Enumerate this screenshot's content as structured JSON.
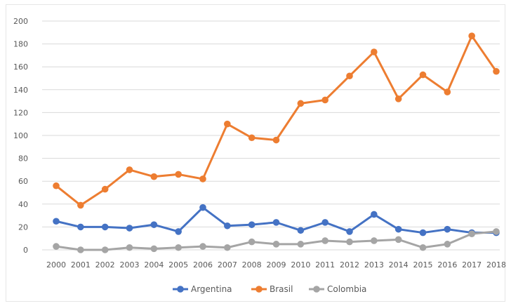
{
  "chart_data": {
    "type": "line",
    "title": "",
    "xlabel": "",
    "ylabel": "",
    "ylim": [
      0,
      200
    ],
    "yticks": [
      0,
      20,
      40,
      60,
      80,
      100,
      120,
      140,
      160,
      180,
      200
    ],
    "grid": true,
    "legend_position": "bottom",
    "x": [
      "2000",
      "2001",
      "2002",
      "2003",
      "2004",
      "2005",
      "2006",
      "2007",
      "2008",
      "2009",
      "2010",
      "2011",
      "2012",
      "2013",
      "2014",
      "2015",
      "2016",
      "2017",
      "2018"
    ],
    "series": [
      {
        "name": "Argentina",
        "color": "#4472C4",
        "values": [
          25,
          20,
          20,
          19,
          22,
          16,
          37,
          21,
          22,
          24,
          17,
          24,
          16,
          31,
          18,
          15,
          18,
          15,
          15
        ]
      },
      {
        "name": "Brasil",
        "color": "#ED7D31",
        "values": [
          56,
          39,
          53,
          70,
          64,
          66,
          62,
          110,
          98,
          96,
          128,
          131,
          152,
          173,
          132,
          153,
          138,
          187,
          156
        ]
      },
      {
        "name": "Colombia",
        "color": "#A5A5A5",
        "values": [
          3,
          0,
          0,
          2,
          1,
          2,
          3,
          2,
          7,
          5,
          5,
          8,
          7,
          8,
          9,
          2,
          5,
          14,
          16
        ]
      }
    ]
  }
}
